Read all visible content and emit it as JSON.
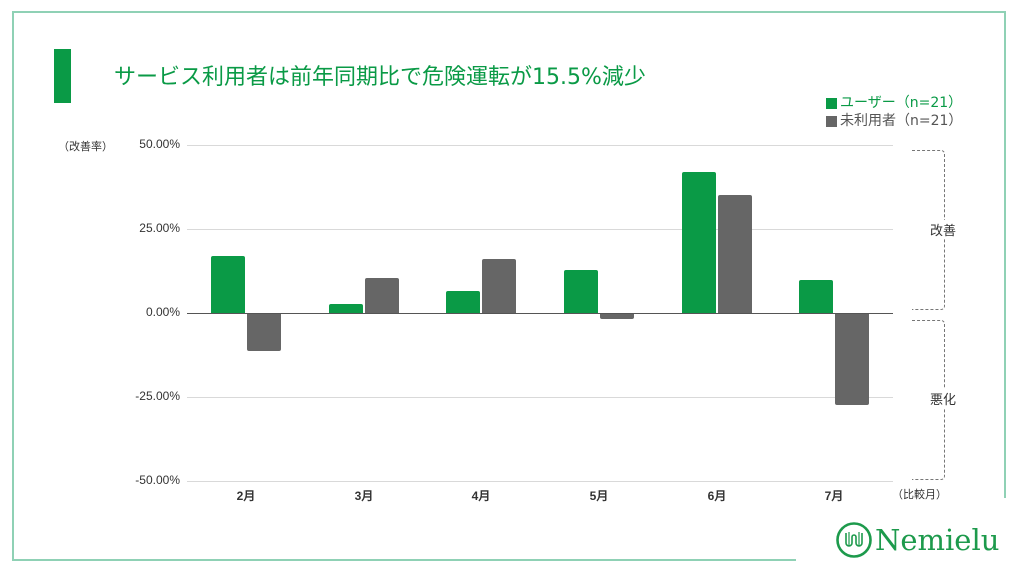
{
  "header": {
    "title": "サービス利用者は前年同期比で危険運転が15.5%減少"
  },
  "legend": {
    "items": [
      {
        "label": "ユーザー（n=21）",
        "color": "#0a9a46"
      },
      {
        "label": "未利用者（n=21）",
        "color": "#666666"
      }
    ]
  },
  "axes": {
    "y_label": "（改善率）",
    "x_unit": "（比較月）",
    "y_ticks": [
      "50.00%",
      "25.00%",
      "0.00%",
      "-25.00%",
      "-50.00%"
    ],
    "improve_label": "改善",
    "worsen_label": "悪化"
  },
  "logo": {
    "text": "Nemielu"
  },
  "chart_data": {
    "type": "bar",
    "title": "サービス利用者は前年同期比で危険運転が15.5%減少",
    "xlabel": "（比較月）",
    "ylabel": "（改善率）",
    "categories": [
      "2月",
      "3月",
      "4月",
      "5月",
      "6月",
      "7月"
    ],
    "series": [
      {
        "name": "ユーザー（n=21）",
        "color": "#0a9a46",
        "values": [
          17.0,
          2.7,
          6.6,
          12.8,
          42.0,
          9.8
        ]
      },
      {
        "name": "未利用者（n=21）",
        "color": "#666666",
        "values": [
          -11.0,
          10.4,
          16.0,
          -1.5,
          35.0,
          -27.0
        ]
      }
    ],
    "ylim": [
      -50,
      50
    ],
    "y_ticks": [
      50,
      25,
      0,
      -25,
      -50
    ],
    "y_format": "percent",
    "grid": true,
    "legend_position": "top-right",
    "annotations": [
      {
        "text": "改善",
        "range": [
          0,
          50
        ]
      },
      {
        "text": "悪化",
        "range": [
          -50,
          0
        ]
      }
    ]
  }
}
